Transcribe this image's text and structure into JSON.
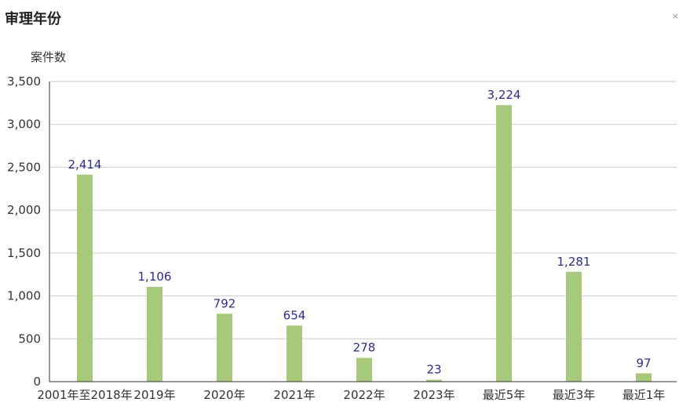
{
  "header": {
    "title": "审理年份",
    "close_glyph": "×"
  },
  "chart_data": {
    "type": "bar",
    "title": "",
    "xlabel": "",
    "ylabel": "案件数",
    "categories": [
      "2001年至2018年",
      "2019年",
      "2020年",
      "2021年",
      "2022年",
      "2023年",
      "最近5年",
      "最近3年",
      "最近1年"
    ],
    "values": [
      2414,
      1106,
      792,
      654,
      278,
      23,
      3224,
      1281,
      97
    ],
    "data_labels": [
      "2,414",
      "1,106",
      "792",
      "654",
      "278",
      "23",
      "3,224",
      "1,281",
      "97"
    ],
    "y_ticks": [
      0,
      500,
      1000,
      1500,
      2000,
      2500,
      3000,
      3500
    ],
    "y_tick_labels": [
      "0",
      "500",
      "1,000",
      "1,500",
      "2,000",
      "2,500",
      "3,000",
      "3,500"
    ],
    "ylim": [
      0,
      3500
    ],
    "grid": true,
    "legend": "none",
    "bar_color": "#a6c97a",
    "label_color": "#2a2aa8",
    "grid_color": "#cccccc"
  }
}
